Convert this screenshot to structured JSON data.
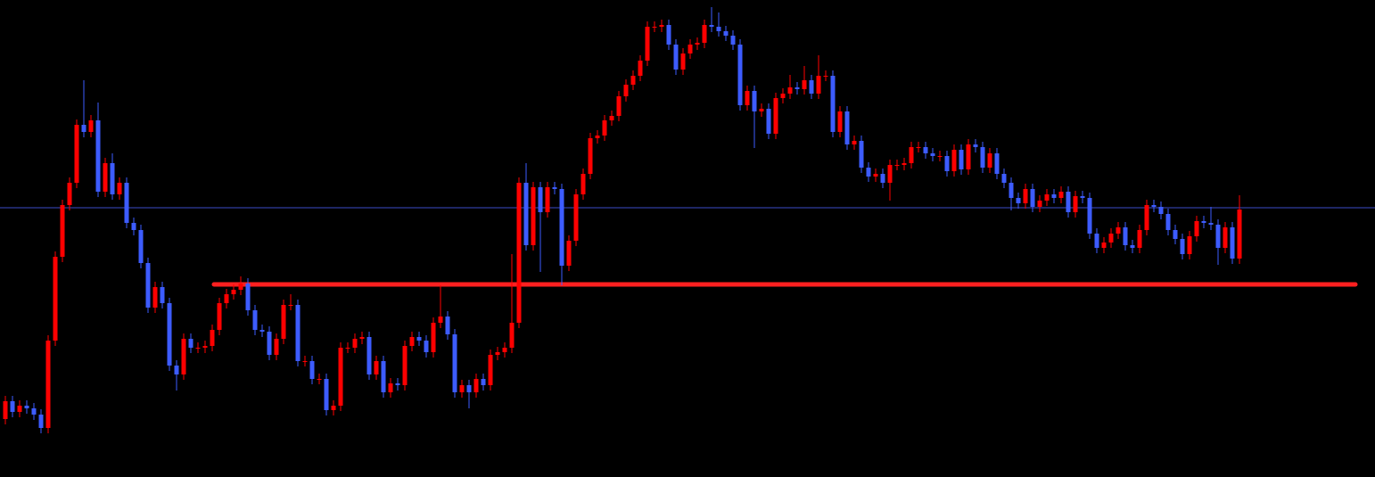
{
  "chart_data": {
    "type": "candlestick",
    "ylim": [
      0,
      535
    ],
    "up_color": "#ff0000",
    "down_color": "#3d5cff",
    "hlines": [
      {
        "value": 302,
        "color": "#3c4cc8"
      },
      {
        "value": 216,
        "color": "#ff2020"
      }
    ],
    "open": [
      65,
      85,
      73,
      80,
      77,
      70,
      55,
      153,
      247,
      305,
      330,
      395,
      387,
      400,
      320,
      352,
      317,
      330,
      285,
      277,
      240,
      190,
      213,
      195,
      125,
      115,
      155,
      145,
      145,
      147,
      165,
      195,
      205,
      210,
      217,
      187,
      165,
      163,
      137,
      155,
      193,
      193,
      130,
      130,
      110,
      110,
      75,
      80,
      145,
      145,
      155,
      157,
      115,
      130,
      95,
      105,
      103,
      147,
      157,
      153,
      140,
      173,
      180,
      160,
      95,
      103,
      95,
      110,
      103,
      137,
      140,
      145,
      173,
      330,
      260,
      325,
      297,
      325,
      323,
      237,
      265,
      317,
      340,
      380,
      383,
      400,
      405,
      427,
      440,
      450,
      467,
      505,
      505,
      507,
      485,
      457,
      475,
      485,
      487,
      507,
      505,
      500,
      495,
      485,
      417,
      433,
      410,
      413,
      385,
      425,
      430,
      437,
      435,
      445,
      430,
      450,
      450,
      387,
      410,
      373,
      377,
      347,
      337,
      340,
      330,
      350,
      350,
      352,
      370,
      370,
      363,
      360,
      360,
      343,
      367,
      345,
      373,
      370,
      347,
      363,
      340,
      330,
      313,
      307,
      323,
      303,
      310,
      317,
      313,
      320,
      297,
      315,
      313,
      273,
      257,
      263,
      273,
      280,
      260,
      257,
      277,
      305,
      303,
      295,
      277,
      267,
      250,
      270,
      287,
      285,
      283,
      257,
      280,
      245
    ],
    "high": [
      91,
      91,
      86,
      86,
      83,
      76,
      159,
      253,
      311,
      336,
      401,
      445,
      406,
      420,
      358,
      363,
      336,
      336,
      291,
      283,
      246,
      219,
      219,
      201,
      131,
      161,
      161,
      151,
      153,
      171,
      201,
      211,
      216,
      225,
      223,
      193,
      171,
      169,
      161,
      199,
      205,
      199,
      136,
      136,
      116,
      116,
      86,
      151,
      151,
      161,
      163,
      163,
      136,
      136,
      111,
      111,
      153,
      163,
      163,
      159,
      179,
      215,
      186,
      166,
      109,
      109,
      116,
      116,
      143,
      146,
      151,
      250,
      336,
      352,
      331,
      331,
      331,
      331,
      329,
      271,
      323,
      346,
      386,
      389,
      406,
      411,
      433,
      446,
      456,
      473,
      511,
      511,
      513,
      513,
      491,
      481,
      491,
      493,
      513,
      527,
      521,
      506,
      501,
      491,
      439,
      439,
      419,
      419,
      431,
      436,
      451,
      443,
      461,
      451,
      473,
      456,
      456,
      416,
      416,
      383,
      383,
      353,
      346,
      346,
      356,
      356,
      358,
      376,
      376,
      376,
      369,
      366,
      366,
      373,
      373,
      379,
      379,
      376,
      369,
      369,
      346,
      336,
      319,
      329,
      329,
      316,
      323,
      323,
      326,
      326,
      321,
      321,
      319,
      279,
      269,
      279,
      286,
      286,
      266,
      283,
      311,
      311,
      309,
      301,
      283,
      273,
      276,
      293,
      293,
      303,
      289,
      286,
      286,
      316
    ],
    "low": [
      59,
      67,
      67,
      71,
      64,
      49,
      49,
      147,
      241,
      299,
      324,
      381,
      381,
      314,
      314,
      311,
      311,
      279,
      271,
      234,
      184,
      184,
      189,
      119,
      97,
      109,
      139,
      139,
      139,
      141,
      159,
      189,
      199,
      204,
      181,
      159,
      157,
      131,
      131,
      149,
      187,
      124,
      124,
      104,
      104,
      69,
      69,
      74,
      139,
      139,
      149,
      109,
      109,
      89,
      89,
      97,
      97,
      141,
      147,
      134,
      134,
      167,
      154,
      89,
      89,
      77,
      89,
      97,
      97,
      131,
      134,
      139,
      167,
      254,
      254,
      230,
      291,
      317,
      215,
      231,
      259,
      311,
      334,
      374,
      377,
      394,
      399,
      421,
      434,
      444,
      461,
      499,
      499,
      479,
      451,
      451,
      469,
      479,
      481,
      499,
      494,
      489,
      479,
      411,
      411,
      369,
      404,
      379,
      379,
      419,
      424,
      429,
      429,
      424,
      424,
      444,
      381,
      381,
      367,
      367,
      341,
      331,
      331,
      324,
      310,
      344,
      344,
      346,
      364,
      357,
      354,
      354,
      337,
      337,
      339,
      339,
      364,
      341,
      341,
      334,
      324,
      299,
      301,
      301,
      297,
      297,
      304,
      307,
      307,
      291,
      291,
      307,
      267,
      251,
      251,
      257,
      267,
      254,
      251,
      251,
      271,
      297,
      289,
      271,
      261,
      244,
      244,
      264,
      279,
      277,
      238,
      251,
      239,
      239
    ],
    "close": [
      85,
      73,
      80,
      77,
      70,
      55,
      153,
      247,
      305,
      330,
      395,
      387,
      400,
      320,
      352,
      317,
      330,
      285,
      277,
      240,
      190,
      213,
      195,
      125,
      115,
      155,
      145,
      145,
      147,
      165,
      195,
      205,
      210,
      217,
      187,
      165,
      163,
      137,
      155,
      193,
      193,
      130,
      130,
      110,
      110,
      75,
      80,
      145,
      145,
      155,
      157,
      115,
      130,
      95,
      105,
      103,
      147,
      157,
      153,
      140,
      173,
      180,
      160,
      95,
      103,
      95,
      110,
      103,
      137,
      140,
      145,
      173,
      330,
      260,
      325,
      297,
      325,
      323,
      237,
      265,
      317,
      340,
      380,
      383,
      400,
      405,
      427,
      440,
      450,
      467,
      505,
      505,
      507,
      485,
      457,
      475,
      485,
      487,
      507,
      505,
      500,
      495,
      485,
      417,
      433,
      410,
      413,
      385,
      425,
      430,
      437,
      435,
      445,
      430,
      450,
      450,
      387,
      410,
      373,
      377,
      347,
      337,
      340,
      330,
      350,
      350,
      352,
      370,
      370,
      363,
      360,
      360,
      343,
      367,
      345,
      373,
      370,
      347,
      363,
      340,
      330,
      313,
      307,
      323,
      303,
      310,
      317,
      313,
      320,
      297,
      315,
      313,
      273,
      257,
      263,
      273,
      280,
      260,
      257,
      277,
      305,
      303,
      295,
      277,
      267,
      250,
      270,
      287,
      285,
      283,
      257,
      280,
      245,
      300
    ]
  }
}
